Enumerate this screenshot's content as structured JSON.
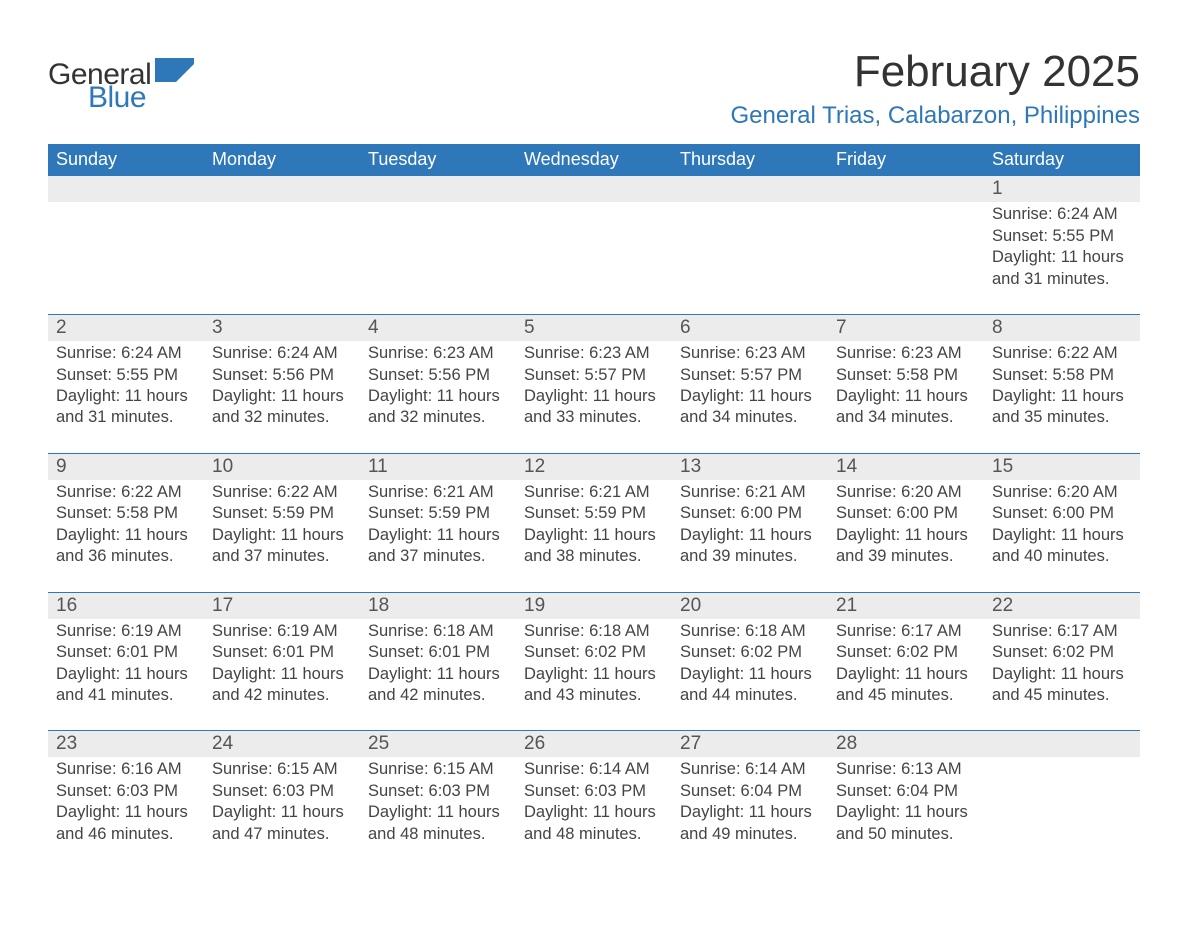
{
  "brand": {
    "general": "General",
    "blue": "Blue",
    "colors": {
      "brand_blue": "#2e77b8",
      "text_dark": "#333333"
    }
  },
  "title": {
    "month": "February 2025",
    "location": "General Trias, Calabarzon, Philippines"
  },
  "calendar": {
    "type": "table",
    "weekdays": [
      "Sunday",
      "Monday",
      "Tuesday",
      "Wednesday",
      "Thursday",
      "Friday",
      "Saturday"
    ],
    "header_bg": "#2e77b8",
    "header_fg": "#ffffff",
    "daynum_bg": "#ececec",
    "rule_color": "#2e77b8",
    "font_family": "Segoe UI / Helvetica Neue",
    "weekday_fontsize_pt": 14,
    "daynum_fontsize_pt": 14,
    "detail_fontsize_pt": 12,
    "weeks": [
      [
        {
          "day": "",
          "sunrise": "",
          "sunset": "",
          "daylight": ""
        },
        {
          "day": "",
          "sunrise": "",
          "sunset": "",
          "daylight": ""
        },
        {
          "day": "",
          "sunrise": "",
          "sunset": "",
          "daylight": ""
        },
        {
          "day": "",
          "sunrise": "",
          "sunset": "",
          "daylight": ""
        },
        {
          "day": "",
          "sunrise": "",
          "sunset": "",
          "daylight": ""
        },
        {
          "day": "",
          "sunrise": "",
          "sunset": "",
          "daylight": ""
        },
        {
          "day": "1",
          "sunrise": "Sunrise: 6:24 AM",
          "sunset": "Sunset: 5:55 PM",
          "daylight": "Daylight: 11 hours and 31 minutes."
        }
      ],
      [
        {
          "day": "2",
          "sunrise": "Sunrise: 6:24 AM",
          "sunset": "Sunset: 5:55 PM",
          "daylight": "Daylight: 11 hours and 31 minutes."
        },
        {
          "day": "3",
          "sunrise": "Sunrise: 6:24 AM",
          "sunset": "Sunset: 5:56 PM",
          "daylight": "Daylight: 11 hours and 32 minutes."
        },
        {
          "day": "4",
          "sunrise": "Sunrise: 6:23 AM",
          "sunset": "Sunset: 5:56 PM",
          "daylight": "Daylight: 11 hours and 32 minutes."
        },
        {
          "day": "5",
          "sunrise": "Sunrise: 6:23 AM",
          "sunset": "Sunset: 5:57 PM",
          "daylight": "Daylight: 11 hours and 33 minutes."
        },
        {
          "day": "6",
          "sunrise": "Sunrise: 6:23 AM",
          "sunset": "Sunset: 5:57 PM",
          "daylight": "Daylight: 11 hours and 34 minutes."
        },
        {
          "day": "7",
          "sunrise": "Sunrise: 6:23 AM",
          "sunset": "Sunset: 5:58 PM",
          "daylight": "Daylight: 11 hours and 34 minutes."
        },
        {
          "day": "8",
          "sunrise": "Sunrise: 6:22 AM",
          "sunset": "Sunset: 5:58 PM",
          "daylight": "Daylight: 11 hours and 35 minutes."
        }
      ],
      [
        {
          "day": "9",
          "sunrise": "Sunrise: 6:22 AM",
          "sunset": "Sunset: 5:58 PM",
          "daylight": "Daylight: 11 hours and 36 minutes."
        },
        {
          "day": "10",
          "sunrise": "Sunrise: 6:22 AM",
          "sunset": "Sunset: 5:59 PM",
          "daylight": "Daylight: 11 hours and 37 minutes."
        },
        {
          "day": "11",
          "sunrise": "Sunrise: 6:21 AM",
          "sunset": "Sunset: 5:59 PM",
          "daylight": "Daylight: 11 hours and 37 minutes."
        },
        {
          "day": "12",
          "sunrise": "Sunrise: 6:21 AM",
          "sunset": "Sunset: 5:59 PM",
          "daylight": "Daylight: 11 hours and 38 minutes."
        },
        {
          "day": "13",
          "sunrise": "Sunrise: 6:21 AM",
          "sunset": "Sunset: 6:00 PM",
          "daylight": "Daylight: 11 hours and 39 minutes."
        },
        {
          "day": "14",
          "sunrise": "Sunrise: 6:20 AM",
          "sunset": "Sunset: 6:00 PM",
          "daylight": "Daylight: 11 hours and 39 minutes."
        },
        {
          "day": "15",
          "sunrise": "Sunrise: 6:20 AM",
          "sunset": "Sunset: 6:00 PM",
          "daylight": "Daylight: 11 hours and 40 minutes."
        }
      ],
      [
        {
          "day": "16",
          "sunrise": "Sunrise: 6:19 AM",
          "sunset": "Sunset: 6:01 PM",
          "daylight": "Daylight: 11 hours and 41 minutes."
        },
        {
          "day": "17",
          "sunrise": "Sunrise: 6:19 AM",
          "sunset": "Sunset: 6:01 PM",
          "daylight": "Daylight: 11 hours and 42 minutes."
        },
        {
          "day": "18",
          "sunrise": "Sunrise: 6:18 AM",
          "sunset": "Sunset: 6:01 PM",
          "daylight": "Daylight: 11 hours and 42 minutes."
        },
        {
          "day": "19",
          "sunrise": "Sunrise: 6:18 AM",
          "sunset": "Sunset: 6:02 PM",
          "daylight": "Daylight: 11 hours and 43 minutes."
        },
        {
          "day": "20",
          "sunrise": "Sunrise: 6:18 AM",
          "sunset": "Sunset: 6:02 PM",
          "daylight": "Daylight: 11 hours and 44 minutes."
        },
        {
          "day": "21",
          "sunrise": "Sunrise: 6:17 AM",
          "sunset": "Sunset: 6:02 PM",
          "daylight": "Daylight: 11 hours and 45 minutes."
        },
        {
          "day": "22",
          "sunrise": "Sunrise: 6:17 AM",
          "sunset": "Sunset: 6:02 PM",
          "daylight": "Daylight: 11 hours and 45 minutes."
        }
      ],
      [
        {
          "day": "23",
          "sunrise": "Sunrise: 6:16 AM",
          "sunset": "Sunset: 6:03 PM",
          "daylight": "Daylight: 11 hours and 46 minutes."
        },
        {
          "day": "24",
          "sunrise": "Sunrise: 6:15 AM",
          "sunset": "Sunset: 6:03 PM",
          "daylight": "Daylight: 11 hours and 47 minutes."
        },
        {
          "day": "25",
          "sunrise": "Sunrise: 6:15 AM",
          "sunset": "Sunset: 6:03 PM",
          "daylight": "Daylight: 11 hours and 48 minutes."
        },
        {
          "day": "26",
          "sunrise": "Sunrise: 6:14 AM",
          "sunset": "Sunset: 6:03 PM",
          "daylight": "Daylight: 11 hours and 48 minutes."
        },
        {
          "day": "27",
          "sunrise": "Sunrise: 6:14 AM",
          "sunset": "Sunset: 6:04 PM",
          "daylight": "Daylight: 11 hours and 49 minutes."
        },
        {
          "day": "28",
          "sunrise": "Sunrise: 6:13 AM",
          "sunset": "Sunset: 6:04 PM",
          "daylight": "Daylight: 11 hours and 50 minutes."
        },
        {
          "day": "",
          "sunrise": "",
          "sunset": "",
          "daylight": ""
        }
      ]
    ]
  }
}
